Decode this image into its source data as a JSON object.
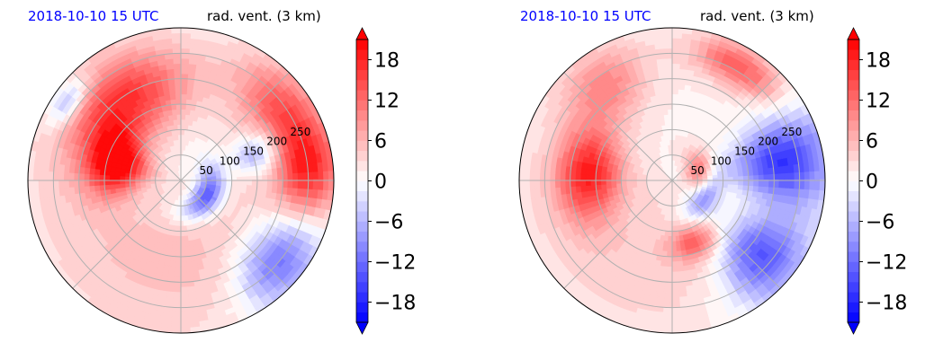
{
  "chart_data": [
    {
      "type": "heatmap",
      "projection": "polar",
      "title_left": "2018-10-10 15 UTC",
      "title_right": "rad. vent. (3 km)",
      "title_left_color": "#0000ff",
      "radial_ticks": [
        "50",
        "100",
        "150",
        "200",
        "250"
      ],
      "radial_values": [
        50,
        100,
        150,
        200,
        250
      ],
      "rlim": [
        0,
        300
      ],
      "colorbar": {
        "ticks": [
          "−18",
          "−12",
          "−6",
          "0",
          "6",
          "12",
          "18"
        ],
        "tick_values": [
          -18,
          -12,
          -6,
          0,
          6,
          12,
          18
        ],
        "range": [
          -21,
          21
        ],
        "extend": "both",
        "colormap": "bwr",
        "levels": 28
      },
      "grid": true,
      "features": [
        {
          "field": 15,
          "r": 190,
          "theta": 125,
          "sr": 60,
          "st": 28
        },
        {
          "field": 20,
          "r": 130,
          "theta": 165,
          "sr": 40,
          "st": 18
        },
        {
          "field": 12,
          "r": 240,
          "theta": 35,
          "sr": 50,
          "st": 18
        },
        {
          "field": 14,
          "r": 250,
          "theta": 5,
          "sr": 45,
          "st": 14
        },
        {
          "field": -16,
          "r": 60,
          "theta": -30,
          "sr": 20,
          "st": 40
        },
        {
          "field": -14,
          "r": 250,
          "theta": -40,
          "sr": 50,
          "st": 15
        },
        {
          "field": -10,
          "r": 270,
          "theta": 145,
          "sr": 20,
          "st": 8
        },
        {
          "field": -10,
          "r": 160,
          "theta": 20,
          "sr": 35,
          "st": 10
        },
        {
          "field": 4,
          "r": 160,
          "theta": -100,
          "sr": 120,
          "st": 80
        }
      ]
    },
    {
      "type": "heatmap",
      "projection": "polar",
      "title_left": "2018-10-10 15 UTC",
      "title_right": "rad. vent. (3 km)",
      "title_left_color": "#0000ff",
      "radial_ticks": [
        "50",
        "100",
        "150",
        "200",
        "250"
      ],
      "radial_values": [
        50,
        100,
        150,
        200,
        250
      ],
      "rlim": [
        0,
        300
      ],
      "colorbar": {
        "ticks": [
          "−18",
          "−12",
          "−6",
          "0",
          "6",
          "12",
          "18"
        ],
        "tick_values": [
          -18,
          -12,
          -6,
          0,
          6,
          12,
          18
        ],
        "range": [
          -21,
          21
        ],
        "extend": "both",
        "colormap": "bwr",
        "levels": 28
      },
      "grid": true,
      "features": [
        {
          "field": 16,
          "r": 165,
          "theta": 175,
          "sr": 45,
          "st": 22
        },
        {
          "field": 8,
          "r": 230,
          "theta": 125,
          "sr": 50,
          "st": 15
        },
        {
          "field": 16,
          "r": 60,
          "theta": 10,
          "sr": 20,
          "st": 30
        },
        {
          "field": -16,
          "r": 70,
          "theta": -20,
          "sr": 20,
          "st": 30
        },
        {
          "field": -18,
          "r": 220,
          "theta": 10,
          "sr": 70,
          "st": 15
        },
        {
          "field": -16,
          "r": 230,
          "theta": -40,
          "sr": 60,
          "st": 15
        },
        {
          "field": 12,
          "r": 260,
          "theta": 60,
          "sr": 30,
          "st": 15
        },
        {
          "field": 10,
          "r": 130,
          "theta": -70,
          "sr": 25,
          "st": 15
        },
        {
          "field": 3,
          "r": 160,
          "theta": -120,
          "sr": 120,
          "st": 70
        }
      ]
    }
  ]
}
